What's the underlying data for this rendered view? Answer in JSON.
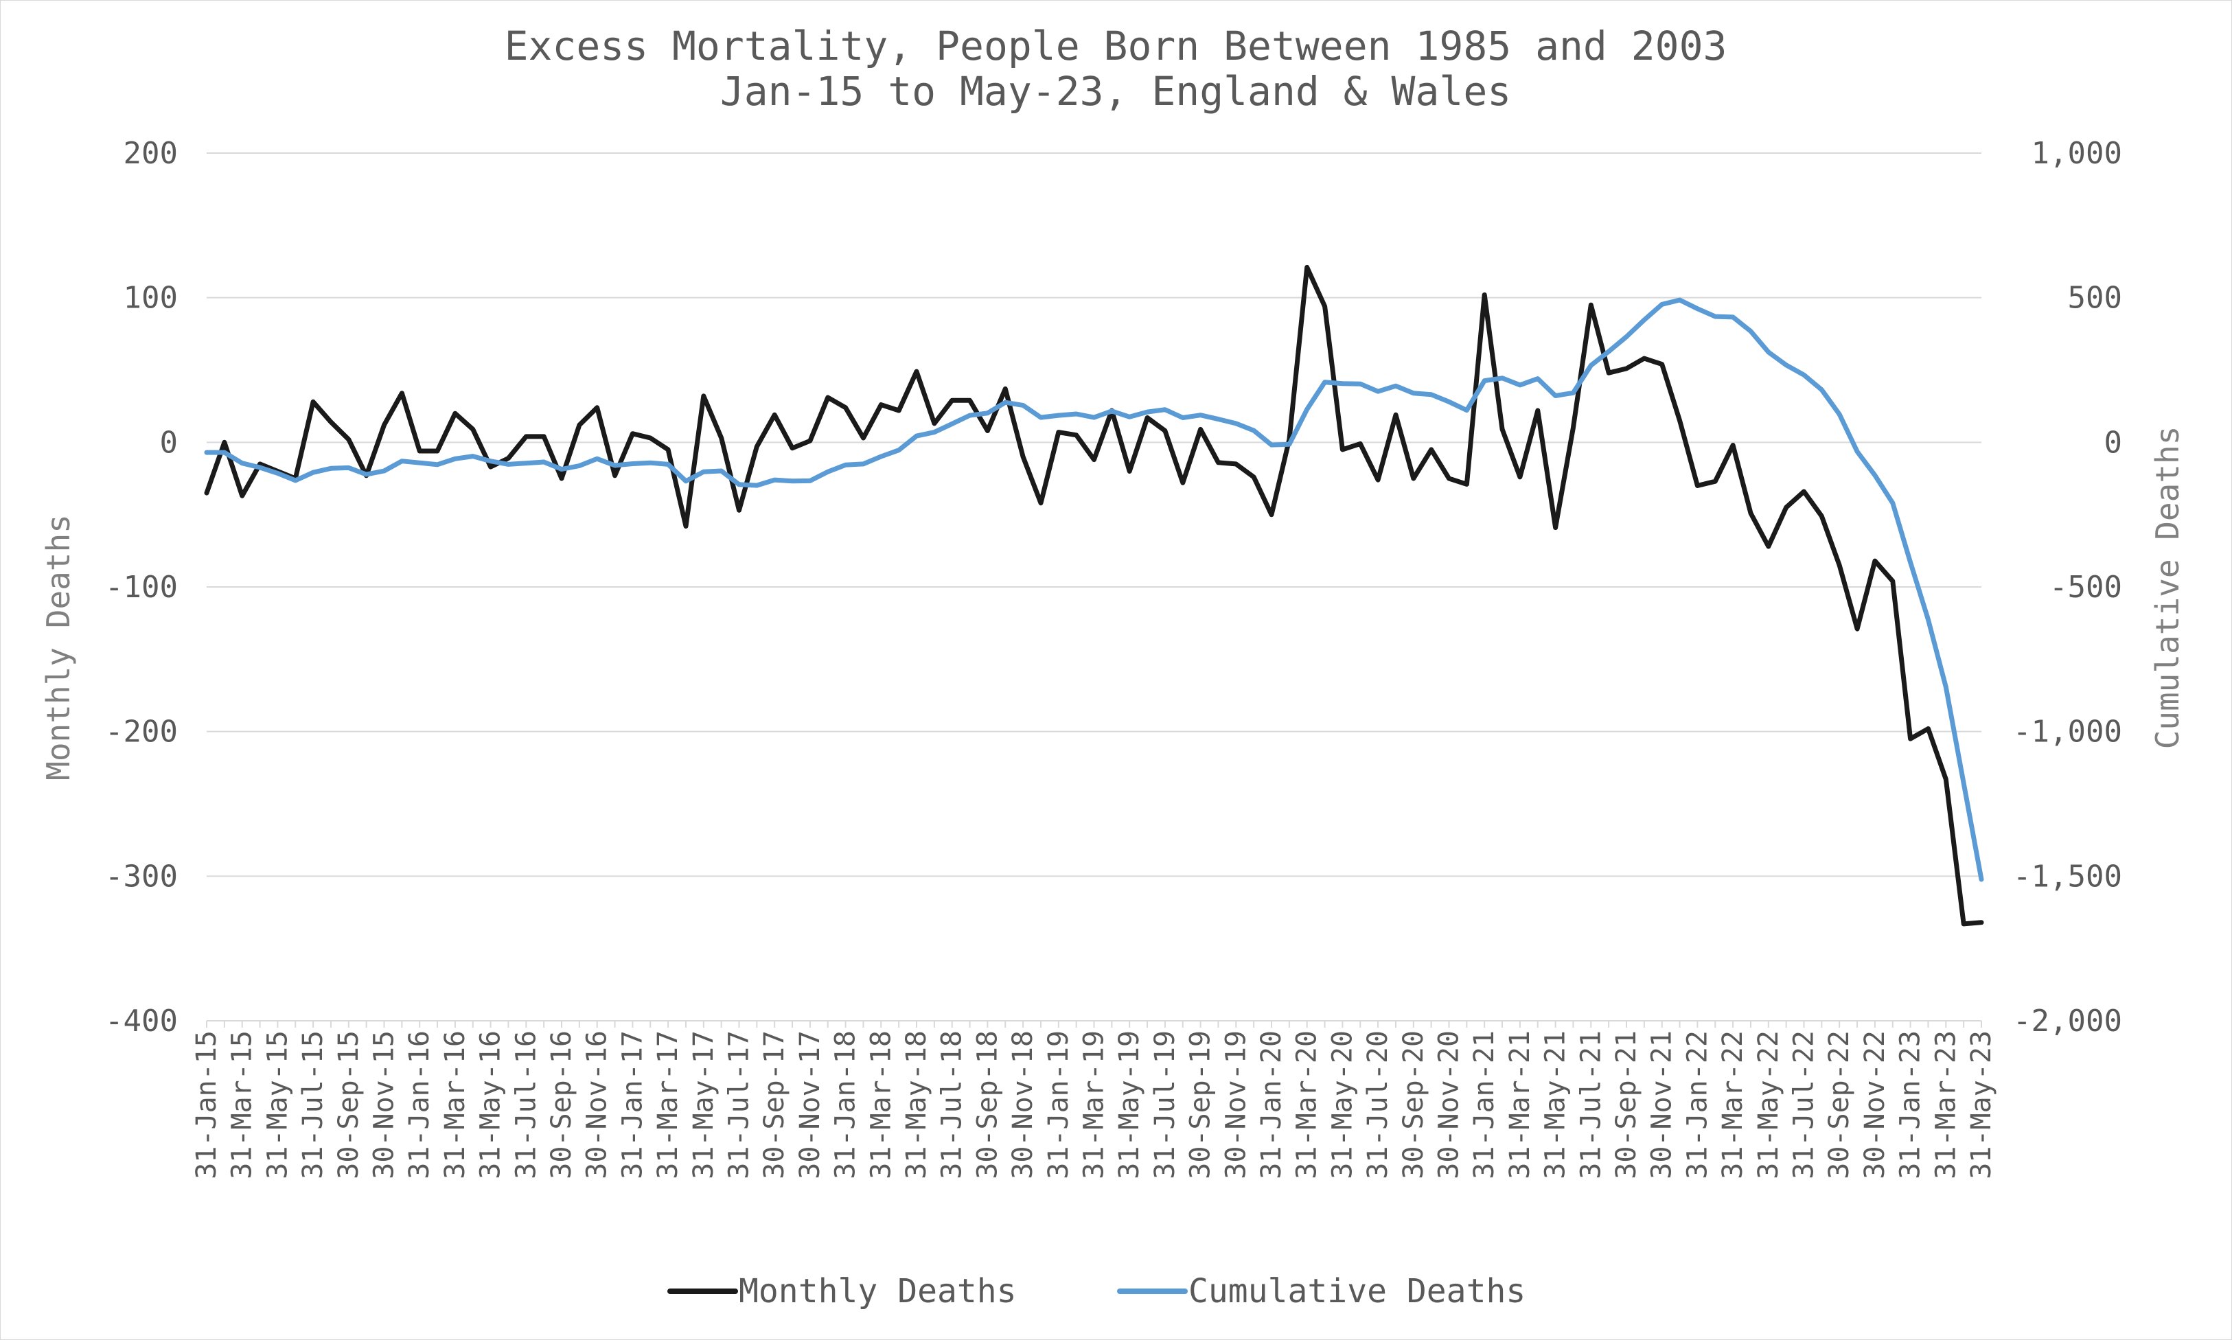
{
  "chart_data": {
    "type": "line",
    "title": "Excess Mortality, People Born Between 1985 and 2003",
    "subtitle": "Jan-15 to May-23, England & Wales",
    "y1label": "Monthly Deaths",
    "y2label": "Cumulative Deaths",
    "y1lim": [
      -400,
      200
    ],
    "y2lim": [
      -2000,
      1000
    ],
    "y1ticks": [
      "200",
      "100",
      "0",
      "-100",
      "-200",
      "-300",
      "-400"
    ],
    "y2ticks": [
      "1,000",
      "500",
      "0",
      "-500",
      "-1,000",
      "-1,500",
      "-2,000"
    ],
    "grid": true,
    "legend_position": "bottom",
    "categories": [
      "31-Jan-15",
      "28-Feb-15",
      "31-Mar-15",
      "30-Apr-15",
      "31-May-15",
      "30-Jun-15",
      "31-Jul-15",
      "31-Aug-15",
      "30-Sep-15",
      "31-Oct-15",
      "30-Nov-15",
      "31-Dec-15",
      "31-Jan-16",
      "29-Feb-16",
      "31-Mar-16",
      "30-Apr-16",
      "31-May-16",
      "30-Jun-16",
      "31-Jul-16",
      "31-Aug-16",
      "30-Sep-16",
      "31-Oct-16",
      "30-Nov-16",
      "31-Dec-16",
      "31-Jan-17",
      "28-Feb-17",
      "31-Mar-17",
      "30-Apr-17",
      "31-May-17",
      "30-Jun-17",
      "31-Jul-17",
      "31-Aug-17",
      "30-Sep-17",
      "31-Oct-17",
      "30-Nov-17",
      "31-Dec-17",
      "31-Jan-18",
      "28-Feb-18",
      "31-Mar-18",
      "30-Apr-18",
      "31-May-18",
      "30-Jun-18",
      "31-Jul-18",
      "31-Aug-18",
      "30-Sep-18",
      "31-Oct-18",
      "30-Nov-18",
      "31-Dec-18",
      "31-Jan-19",
      "28-Feb-19",
      "31-Mar-19",
      "30-Apr-19",
      "31-May-19",
      "30-Jun-19",
      "31-Jul-19",
      "31-Aug-19",
      "30-Sep-19",
      "31-Oct-19",
      "30-Nov-19",
      "31-Dec-19",
      "31-Jan-20",
      "29-Feb-20",
      "31-Mar-20",
      "30-Apr-20",
      "31-May-20",
      "30-Jun-20",
      "31-Jul-20",
      "31-Aug-20",
      "30-Sep-20",
      "31-Oct-20",
      "30-Nov-20",
      "31-Dec-20",
      "31-Jan-21",
      "28-Feb-21",
      "31-Mar-21",
      "30-Apr-21",
      "31-May-21",
      "30-Jun-21",
      "31-Jul-21",
      "31-Aug-21",
      "30-Sep-21",
      "31-Oct-21",
      "30-Nov-21",
      "31-Dec-21",
      "31-Jan-22",
      "28-Feb-22",
      "31-Mar-22",
      "30-Apr-22",
      "31-May-22",
      "30-Jun-22",
      "31-Jul-22",
      "31-Aug-22",
      "30-Sep-22",
      "31-Oct-22",
      "30-Nov-22",
      "31-Dec-22",
      "31-Jan-23",
      "28-Feb-23",
      "31-Mar-23",
      "30-Apr-23",
      "31-May-23"
    ],
    "tick_labels": [
      "31-Jan-15",
      "31-Mar-15",
      "31-May-15",
      "31-Jul-15",
      "30-Sep-15",
      "30-Nov-15",
      "31-Jan-16",
      "31-Mar-16",
      "31-May-16",
      "31-Jul-16",
      "30-Sep-16",
      "30-Nov-16",
      "31-Jan-17",
      "31-Mar-17",
      "31-May-17",
      "31-Jul-17",
      "30-Sep-17",
      "30-Nov-17",
      "31-Jan-18",
      "31-Mar-18",
      "31-May-18",
      "31-Jul-18",
      "30-Sep-18",
      "30-Nov-18",
      "31-Jan-19",
      "31-Mar-19",
      "31-May-19",
      "31-Jul-19",
      "30-Sep-19",
      "30-Nov-19",
      "31-Jan-20",
      "31-Mar-20",
      "31-May-20",
      "31-Jul-20",
      "30-Sep-20",
      "30-Nov-20",
      "31-Jan-21",
      "31-Mar-21",
      "31-May-21",
      "31-Jul-21",
      "30-Sep-21",
      "30-Nov-21",
      "31-Jan-22",
      "31-Mar-22",
      "31-May-22",
      "31-Jul-22",
      "30-Sep-22",
      "30-Nov-22",
      "31-Jan-23",
      "31-Mar-23",
      "31-May-23"
    ],
    "series": [
      {
        "name": "Monthly Deaths",
        "axis": "left",
        "color": "#1a1a1a",
        "values": [
          -35,
          0,
          -37,
          -15,
          -20,
          -25,
          28,
          14,
          2,
          -23,
          12,
          34,
          -6,
          -6,
          20,
          9,
          -17,
          -11,
          4,
          4,
          -25,
          12,
          24,
          -23,
          6,
          3,
          -5,
          -58,
          32,
          3,
          -47,
          -3,
          19,
          -4,
          1,
          31,
          24,
          3,
          26,
          22,
          49,
          13,
          29,
          29,
          8,
          37,
          -10,
          -42,
          7,
          5,
          -12,
          22,
          -20,
          17,
          8,
          -28,
          9,
          -14,
          -15,
          -24,
          -50,
          2,
          121,
          94,
          -5,
          -1,
          -26,
          19,
          -25,
          -5,
          -25,
          -29,
          102,
          9,
          -24,
          22,
          -59,
          10,
          95,
          48,
          51,
          58,
          54,
          15,
          -30,
          -27,
          -2,
          -49,
          -72,
          -45,
          -34,
          -51,
          -85,
          -129,
          -82,
          -96,
          -205,
          -198,
          -233,
          -333,
          -332
        ]
      },
      {
        "name": "Cumulative Deaths",
        "axis": "right",
        "color": "#5b9bd5",
        "values": [
          -35,
          -35,
          -72,
          -87,
          -107,
          -132,
          -104,
          -90,
          -88,
          -111,
          -99,
          -65,
          -71,
          -77,
          -57,
          -48,
          -65,
          -76,
          -72,
          -68,
          -93,
          -81,
          -57,
          -80,
          -74,
          -71,
          -76,
          -134,
          -102,
          -99,
          -146,
          -149,
          -130,
          -134,
          -133,
          -102,
          -78,
          -75,
          -49,
          -27,
          22,
          35,
          64,
          93,
          101,
          138,
          128,
          86,
          93,
          98,
          86,
          108,
          88,
          105,
          113,
          85,
          94,
          80,
          65,
          41,
          -9,
          -7,
          114,
          208,
          203,
          202,
          176,
          195,
          170,
          165,
          140,
          111,
          213,
          222,
          198,
          220,
          161,
          171,
          266,
          314,
          365,
          423,
          477,
          492,
          462,
          435,
          433,
          384,
          312,
          267,
          233,
          182,
          97,
          -32,
          -114,
          -210,
          -415,
          -613,
          -846,
          -1179,
          -1511
        ]
      }
    ]
  }
}
